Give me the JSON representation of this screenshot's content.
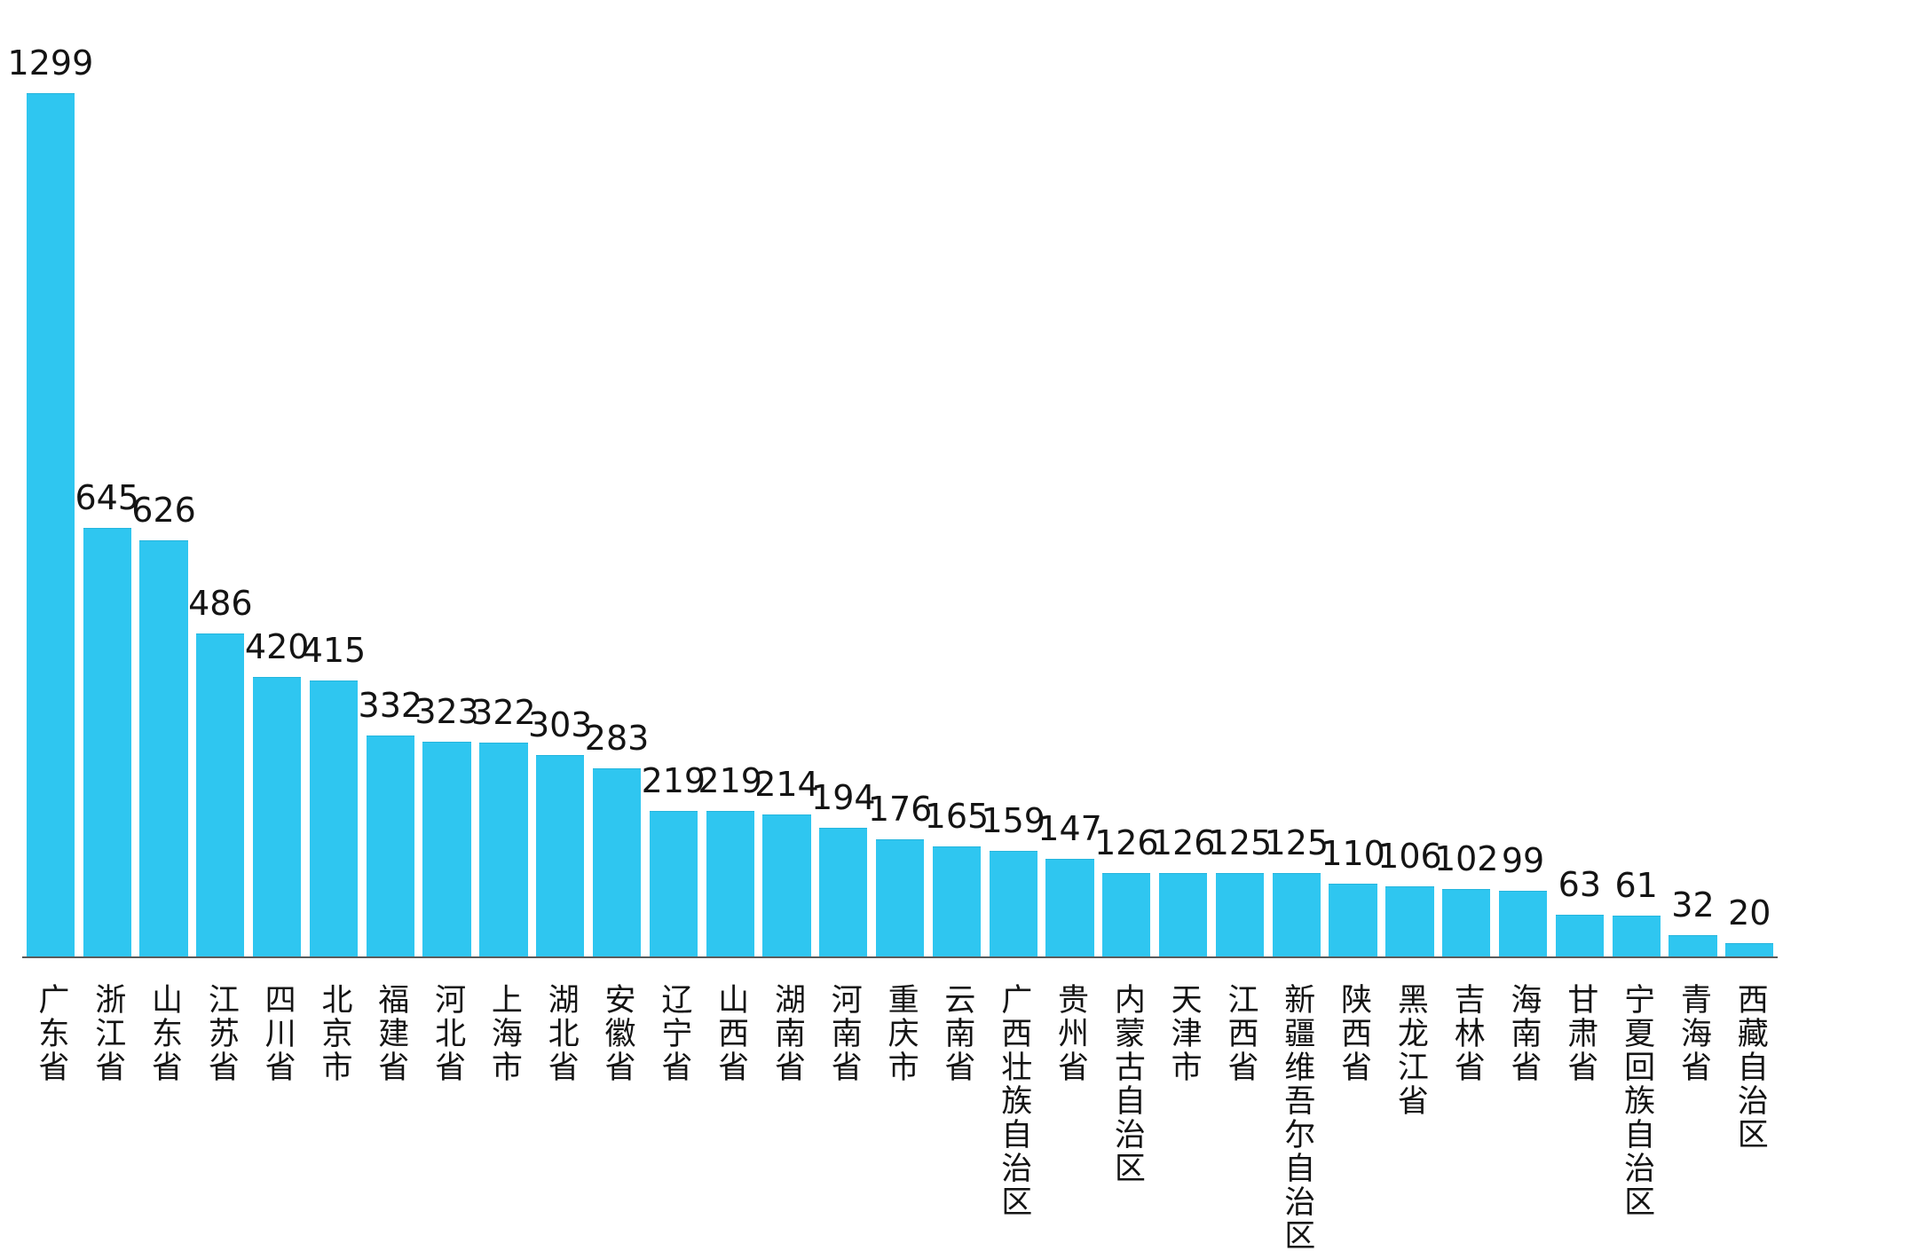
{
  "page": {
    "background_color": "#ffffff"
  },
  "chart_data": {
    "type": "bar",
    "title": "",
    "xlabel": "",
    "ylabel": "",
    "categories": [
      "广东省",
      "浙江省",
      "山东省",
      "江苏省",
      "四川省",
      "北京市",
      "福建省",
      "河北省",
      "上海市",
      "湖北省",
      "安徽省",
      "辽宁省",
      "山西省",
      "湖南省",
      "河南省",
      "重庆市",
      "云南省",
      "广西壮族自治区",
      "贵州省",
      "内蒙古自治区",
      "天津市",
      "江西省",
      "新疆维吾尔自治区",
      "陕西省",
      "黑龙江省",
      "吉林省",
      "海南省",
      "甘肃省",
      "宁夏回族自治区",
      "青海省",
      "西藏自治区"
    ],
    "values": [
      1299,
      645,
      626,
      486,
      420,
      415,
      332,
      323,
      322,
      303,
      283,
      219,
      219,
      214,
      194,
      176,
      165,
      159,
      147,
      126,
      126,
      125,
      125,
      110,
      106,
      102,
      99,
      63,
      61,
      32,
      20
    ],
    "ylim": [
      0,
      1299
    ],
    "grid": false,
    "legend_position": "none",
    "value_labels_shown": true,
    "tick_label_orientation": "vertical-upright",
    "bar_color": "#2FC6F0",
    "bar_edge_color": "#25b5dd",
    "value_label_color": "#141414",
    "tick_label_color": "#141414",
    "axis_line_color": "#5a5a5a"
  }
}
